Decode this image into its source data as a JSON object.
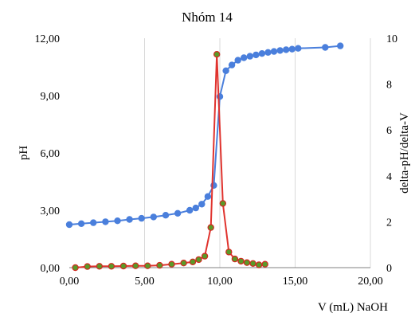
{
  "chart_data": {
    "type": "line",
    "title": "Nhóm 14",
    "xlabel": "V (mL) NaOH",
    "ylabel": "pH",
    "y2label": "delta-pH/delta-V",
    "xlim": [
      0,
      20
    ],
    "ylim": [
      0,
      12
    ],
    "y2lim": [
      0,
      10
    ],
    "x_ticks": [
      "0,00",
      "5,00",
      "10,00",
      "15,00",
      "20,00"
    ],
    "y_ticks": [
      "0,00",
      "3,00",
      "6,00",
      "9,00",
      "12,00"
    ],
    "y2_ticks": [
      "0",
      "2",
      "4",
      "6",
      "8",
      "10"
    ],
    "grid": "vertical",
    "series": [
      {
        "name": "",
        "axis": "left",
        "color": "#4a7fdc",
        "marker_fill": "#4a7fdc",
        "x": [
          0.0,
          0.8,
          1.6,
          2.4,
          3.2,
          4.0,
          4.8,
          5.6,
          6.4,
          7.2,
          8.0,
          8.4,
          8.8,
          9.2,
          9.6,
          10.0,
          10.4,
          10.8,
          11.2,
          11.6,
          12.0,
          12.4,
          12.8,
          13.2,
          13.6,
          14.0,
          14.4,
          14.8,
          15.2,
          17.0,
          18.0
        ],
        "y": [
          2.25,
          2.3,
          2.35,
          2.4,
          2.45,
          2.52,
          2.58,
          2.65,
          2.74,
          2.84,
          3.0,
          3.12,
          3.32,
          3.72,
          4.3,
          8.95,
          10.3,
          10.6,
          10.85,
          10.98,
          11.06,
          11.13,
          11.2,
          11.26,
          11.31,
          11.36,
          11.4,
          11.43,
          11.47,
          11.52,
          11.6
        ]
      },
      {
        "name": "",
        "axis": "right",
        "color": "#e0332e",
        "marker_fill": "#5a9a28",
        "marker_stroke": "#d02a20",
        "x": [
          0.4,
          1.2,
          2.0,
          2.8,
          3.6,
          4.4,
          5.2,
          6.0,
          6.8,
          7.6,
          8.2,
          8.6,
          9.0,
          9.4,
          9.8,
          10.2,
          10.6,
          11.0,
          11.4,
          11.8,
          12.2,
          12.6,
          13.0
        ],
        "y": [
          0.0,
          0.05,
          0.06,
          0.06,
          0.07,
          0.08,
          0.08,
          0.1,
          0.15,
          0.2,
          0.25,
          0.35,
          0.5,
          1.75,
          9.3,
          2.8,
          0.68,
          0.38,
          0.28,
          0.22,
          0.18,
          0.12,
          0.15
        ]
      }
    ]
  }
}
